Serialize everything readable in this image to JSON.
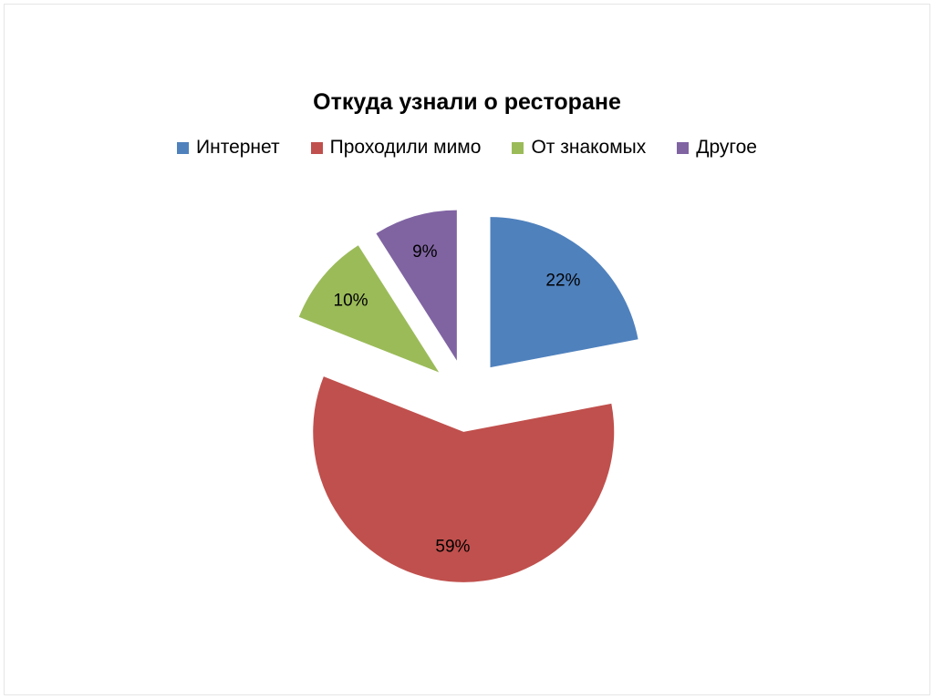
{
  "chart_data": {
    "type": "pie",
    "title": "Откуда узнали о ресторане",
    "legend_position": "top",
    "exploded": true,
    "slices": [
      {
        "label": "Интернет",
        "value": 22,
        "display": "22%",
        "color": "#4f81bd"
      },
      {
        "label": "Проходили мимо",
        "value": 59,
        "display": "59%",
        "color": "#c0504d"
      },
      {
        "label": "От знакомых",
        "value": 10,
        "display": "10%",
        "color": "#9bbb59"
      },
      {
        "label": "Другое",
        "value": 9,
        "display": "9%",
        "color": "#8064a2"
      }
    ]
  }
}
